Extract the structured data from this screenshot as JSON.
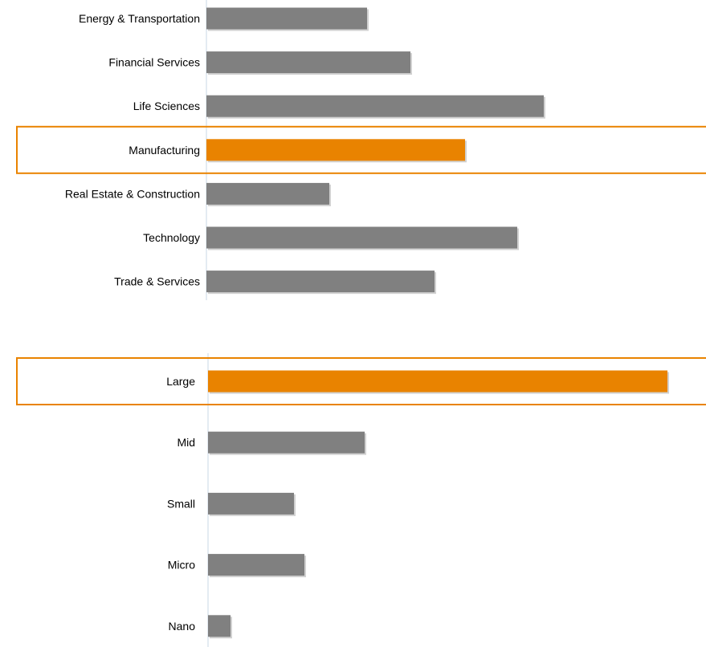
{
  "chart_data": [
    {
      "type": "bar",
      "orientation": "horizontal",
      "categories": [
        "Energy & Transportation",
        "Financial Services",
        "Life Sciences",
        "Manufacturing",
        "Real Estate & Construction",
        "Technology",
        "Trade & Services"
      ],
      "values": [
        200,
        254,
        420,
        322,
        153,
        387,
        284
      ],
      "highlight": "Manufacturing",
      "title": "",
      "xlabel": "",
      "ylabel": "",
      "grid": false,
      "legend": "none"
    },
    {
      "type": "bar",
      "orientation": "horizontal",
      "categories": [
        "Large",
        "Mid",
        "Small",
        "Micro",
        "Nano"
      ],
      "values": [
        572,
        195,
        107,
        120,
        28
      ],
      "highlight": "Large",
      "title": "",
      "xlabel": "",
      "ylabel": "",
      "grid": false,
      "legend": "none"
    }
  ],
  "colors": {
    "bar": "#808080",
    "highlight": "#e98300",
    "axis": "#c9d7e6"
  }
}
